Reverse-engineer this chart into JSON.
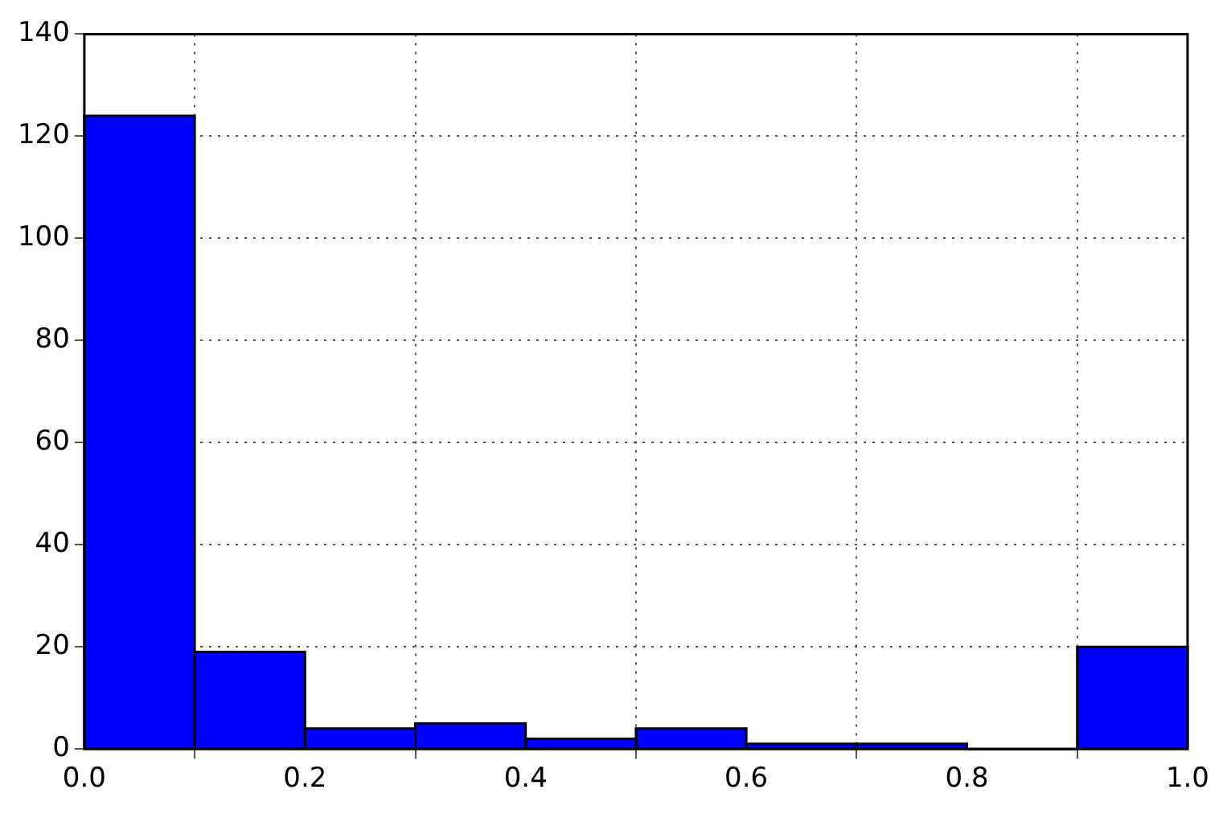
{
  "chart_data": {
    "type": "histogram",
    "bins": [
      0.0,
      0.1,
      0.2,
      0.3,
      0.4,
      0.5,
      0.6,
      0.7,
      0.8,
      0.9,
      1.0
    ],
    "values": [
      124,
      19,
      4,
      5,
      2,
      4,
      1,
      1,
      0,
      20
    ],
    "color": "#0000ff",
    "xlim": [
      0.0,
      1.0
    ],
    "xticks": [
      {
        "value": 0,
        "label": "0.0"
      },
      0.2,
      0.4,
      0.6,
      0.8,
      {
        "value": 1,
        "label": "1.0"
      }
    ],
    "ylim": [
      0,
      140
    ],
    "yticks": [
      0,
      20,
      40,
      60,
      80,
      100,
      120,
      140
    ],
    "grid": true
  }
}
